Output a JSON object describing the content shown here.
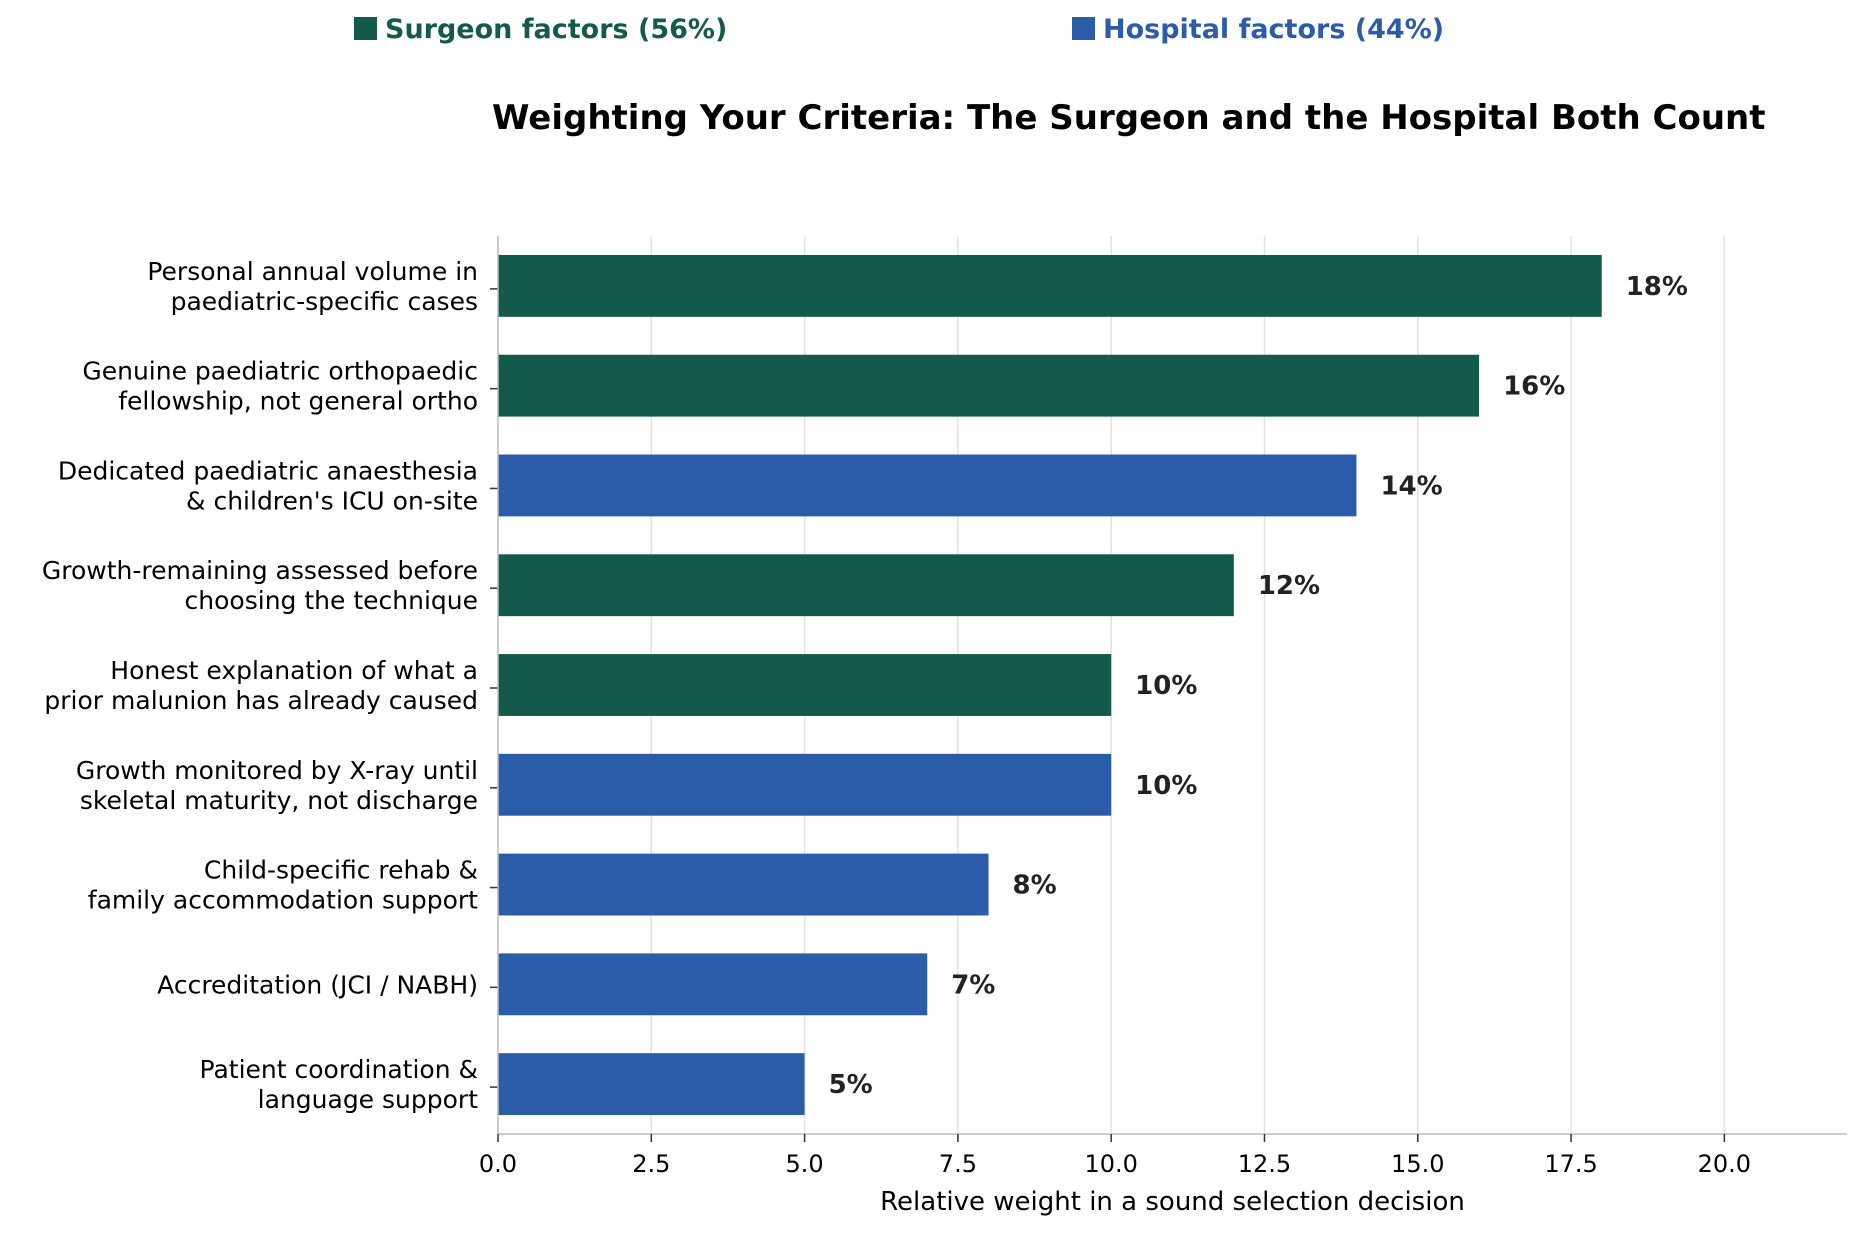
{
  "legend": {
    "surgeon": {
      "label": "Surgeon factors (56%)",
      "color": "#135a4d"
    },
    "hospital": {
      "label": "Hospital factors (44%)",
      "color": "#2b5ca8"
    }
  },
  "chart_data": {
    "type": "bar",
    "orientation": "horizontal",
    "title": "Weighting Your Criteria: The Surgeon and the Hospital Both Count",
    "xlabel": "Relative weight in a sound selection decision",
    "ylabel": "",
    "xlim": [
      0,
      22
    ],
    "xticks": [
      "0.0",
      "2.5",
      "5.0",
      "7.5",
      "10.0",
      "12.5",
      "15.0",
      "17.5",
      "20.0"
    ],
    "xtick_values": [
      0,
      2.5,
      5,
      7.5,
      10,
      12.5,
      15,
      17.5,
      20
    ],
    "grid": "vertical",
    "legend_position": "top",
    "bars": [
      {
        "label": [
          "Personal annual volume in",
          "paediatric-specific cases"
        ],
        "value": 18,
        "value_label": "18%",
        "group": "surgeon"
      },
      {
        "label": [
          "Genuine paediatric orthopaedic",
          "fellowship, not general ortho"
        ],
        "value": 16,
        "value_label": "16%",
        "group": "surgeon"
      },
      {
        "label": [
          "Dedicated paediatric anaesthesia",
          "& children's ICU on-site"
        ],
        "value": 14,
        "value_label": "14%",
        "group": "hospital"
      },
      {
        "label": [
          "Growth-remaining assessed before",
          "choosing the technique"
        ],
        "value": 12,
        "value_label": "12%",
        "group": "surgeon"
      },
      {
        "label": [
          "Honest explanation of what a",
          "prior malunion has already caused"
        ],
        "value": 10,
        "value_label": "10%",
        "group": "surgeon"
      },
      {
        "label": [
          "Growth monitored by X-ray until",
          "skeletal maturity, not discharge"
        ],
        "value": 10,
        "value_label": "10%",
        "group": "hospital"
      },
      {
        "label": [
          "Child-specific rehab &",
          "family accommodation support"
        ],
        "value": 8,
        "value_label": "8%",
        "group": "hospital"
      },
      {
        "label": [
          "Accreditation (JCI / NABH)"
        ],
        "value": 7,
        "value_label": "7%",
        "group": "hospital"
      },
      {
        "label": [
          "Patient coordination &",
          "language support"
        ],
        "value": 5,
        "value_label": "5%",
        "group": "hospital"
      }
    ]
  }
}
